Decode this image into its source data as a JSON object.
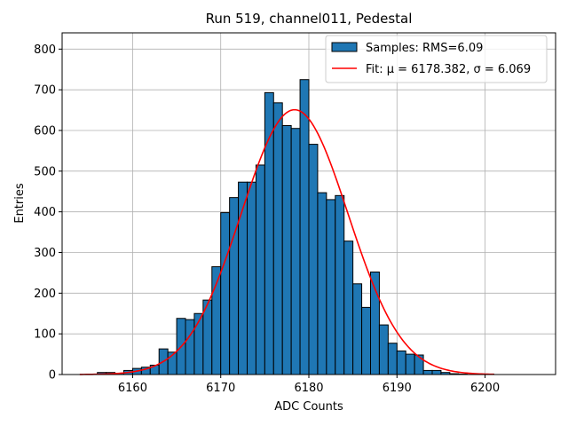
{
  "chart_data": {
    "type": "bar",
    "title": "Run 519, channel011, Pedestal",
    "xlabel": "ADC Counts",
    "ylabel": "Entries",
    "xlim": [
      6152,
      6208
    ],
    "ylim": [
      0,
      840
    ],
    "xticks": [
      6160,
      6170,
      6180,
      6190,
      6200
    ],
    "yticks": [
      0,
      100,
      200,
      300,
      400,
      500,
      600,
      700,
      800
    ],
    "grid": true,
    "legend_position": "top-right",
    "colors": {
      "bars": "#1f77b4",
      "fit": "#ff0000",
      "edge": "#000000",
      "grid": "#b0b0b0"
    },
    "series": [
      {
        "name": "Samples: RMS=6.09",
        "kind": "histogram",
        "bin_width": 1,
        "bin_edges_start": 6155,
        "values": [
          1,
          5,
          5,
          3,
          10,
          15,
          18,
          23,
          63,
          55,
          138,
          135,
          150,
          183,
          265,
          398,
          435,
          473,
          473,
          515,
          693,
          668,
          612,
          605,
          725,
          566,
          447,
          430,
          440,
          328,
          223,
          165,
          252,
          122,
          77,
          58,
          50,
          48,
          10,
          10,
          5,
          2,
          1,
          0,
          0,
          1
        ]
      },
      {
        "name": "Fit: μ = 6178.382, σ = 6.069",
        "kind": "gaussian",
        "mu": 6178.382,
        "sigma": 6.069,
        "amplitude": 651,
        "x_range": [
          6154,
          6201
        ]
      }
    ]
  }
}
